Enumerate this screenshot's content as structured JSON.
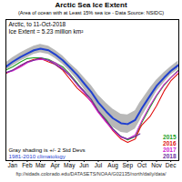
{
  "chart_data": {
    "type": "line",
    "title": "Arctic Sea Ice Extent",
    "subtitle": "(Area of ocean with at Least 15% sea ice - Data Source: NSIDC)",
    "caption": "ftp://sidads.colorado.edu/DATASETS/NOAA/G02135/north/daily/data/",
    "annotations": [
      "Arctic, to 11-Oct-2018",
      "Ice Extent = 5.23 million km²"
    ],
    "x": [
      1,
      15,
      32,
      46,
      60,
      74,
      91,
      105,
      121,
      135,
      152,
      166,
      182,
      196,
      213,
      227,
      244,
      258,
      274,
      284,
      288,
      305,
      319,
      335,
      349,
      365
    ],
    "xlim": [
      1,
      366
    ],
    "xticks": [
      {
        "value": 15,
        "label": "Jan"
      },
      {
        "value": 46,
        "label": "Feb"
      },
      {
        "value": 74,
        "label": "Mar"
      },
      {
        "value": 105,
        "label": "Apr"
      },
      {
        "value": 135,
        "label": "May"
      },
      {
        "value": 166,
        "label": "Jun"
      },
      {
        "value": 196,
        "label": "Jul"
      },
      {
        "value": 227,
        "label": "Aug"
      },
      {
        "value": 258,
        "label": "Sep"
      },
      {
        "value": 288,
        "label": "Oct"
      },
      {
        "value": 319,
        "label": "Nov"
      },
      {
        "value": 349,
        "label": "Dec"
      }
    ],
    "ylim": [
      2,
      19
    ],
    "tick_labels": "x",
    "grid": false,
    "legend": "bottom-right",
    "band": {
      "label": "Gray shading is +/- 2 Std Devs",
      "color": "#b8b8b8",
      "lower": [
        12.8,
        13.4,
        14.0,
        14.4,
        14.8,
        15.0,
        14.8,
        14.3,
        13.6,
        12.8,
        11.7,
        10.6,
        9.4,
        8.1,
        6.9,
        6.0,
        5.4,
        5.3,
        5.8,
        6.8,
        7.3,
        8.9,
        10.3,
        11.4,
        12.3,
        13.0
      ],
      "upper": [
        13.8,
        14.4,
        15.0,
        15.4,
        15.8,
        16.0,
        15.8,
        15.3,
        14.6,
        13.8,
        12.9,
        12.0,
        11.0,
        9.9,
        8.9,
        8.2,
        7.6,
        7.5,
        8.0,
        9.0,
        9.3,
        10.7,
        11.7,
        12.6,
        13.3,
        14.0
      ]
    },
    "climatology": {
      "name": "1981-2010 climatology",
      "color": "#1f3fd0",
      "values": [
        13.3,
        13.9,
        14.5,
        14.9,
        15.3,
        15.5,
        15.3,
        14.8,
        14.1,
        13.3,
        12.3,
        11.3,
        10.2,
        9.0,
        7.9,
        7.1,
        6.5,
        6.4,
        6.9,
        7.9,
        8.3,
        9.8,
        11.0,
        12.0,
        12.8,
        13.5
      ]
    },
    "series": [
      {
        "name": "2015",
        "color": "#22a022",
        "values": [
          12.9,
          13.3,
          13.9,
          14.3,
          14.4,
          14.4,
          14.2,
          13.8,
          13.3,
          12.5,
          11.3,
          10.3,
          9.3,
          8.0,
          6.9,
          5.8,
          4.9,
          4.5,
          4.9,
          6.1,
          6.6,
          8.4,
          9.8,
          11.1,
          12.0,
          12.9
        ]
      },
      {
        "name": "2016",
        "color": "#e01010",
        "values": [
          12.5,
          12.9,
          13.4,
          13.9,
          14.2,
          14.3,
          13.9,
          13.6,
          12.9,
          11.9,
          10.7,
          10.0,
          9.1,
          7.9,
          6.7,
          5.6,
          4.6,
          4.2,
          4.6,
          5.9,
          6.3,
          7.3,
          8.6,
          10.4,
          11.6,
          12.5
        ]
      },
      {
        "name": "2017",
        "color": "#d020d0",
        "values": [
          12.6,
          12.8,
          13.3,
          13.8,
          14.1,
          14.2,
          14.1,
          13.8,
          13.1,
          12.4,
          11.1,
          10.2,
          9.0,
          7.8,
          6.6,
          5.7,
          4.8,
          4.6,
          5.1,
          6.3,
          6.8,
          8.6,
          9.9,
          11.2,
          12.0,
          12.8
        ]
      },
      {
        "name": "2018",
        "color": "#7030a0",
        "values": [
          12.6,
          12.9,
          13.5,
          13.9,
          14.1,
          14.4,
          14.1,
          13.6,
          13.0,
          12.3,
          11.2,
          10.4,
          9.3,
          8.0,
          6.8,
          5.8,
          4.9,
          4.6,
          4.9,
          5.23,
          null,
          null,
          null,
          null,
          null,
          null
        ]
      }
    ]
  }
}
